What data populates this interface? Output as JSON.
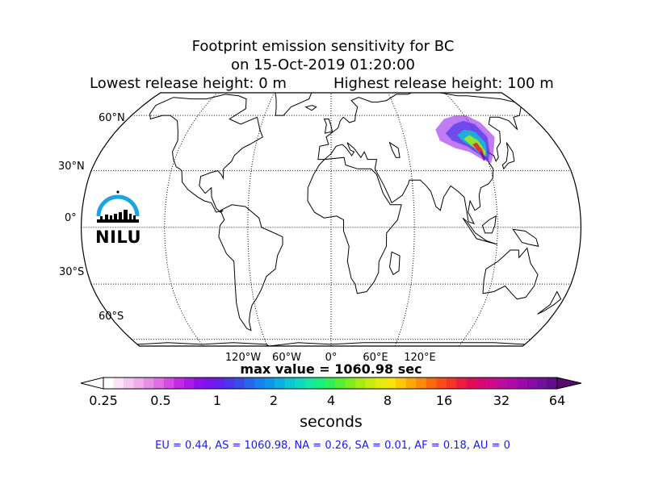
{
  "title": {
    "line1": "Footprint emission sensitivity for BC",
    "line2": "on 15-Oct-2019 01:20:00",
    "lowest": "Lowest release height: 0 m",
    "highest": "Highest release height: 100 m"
  },
  "map": {
    "projection": "Robinson",
    "lat_labels": [
      {
        "text": "60°N",
        "lat": 60
      },
      {
        "text": "30°N",
        "lat": 30
      },
      {
        "text": "0°",
        "lat": 0
      },
      {
        "text": "30°S",
        "lat": -30
      },
      {
        "text": "60°S",
        "lat": -60
      }
    ],
    "lon_labels": [
      {
        "text": "120°W",
        "lon": -120
      },
      {
        "text": "60°W",
        "lon": -60
      },
      {
        "text": "0°",
        "lon": 0
      },
      {
        "text": "60°E",
        "lon": 60
      },
      {
        "text": "120°E",
        "lon": 120
      }
    ],
    "plume_region": "East Asia (Eastern China / Mongolia / Siberia)"
  },
  "logo": {
    "text": "NILU",
    "color": "#1aa5e0"
  },
  "max_value": "max value = 1060.98 sec",
  "colorbar": {
    "label": "seconds",
    "ticks": [
      "0.25",
      "0.5",
      "1",
      "2",
      "4",
      "8",
      "16",
      "32",
      "64"
    ],
    "colors": [
      "#ffffff",
      "#fbe3f8",
      "#f5c8f2",
      "#eeacec",
      "#e68fe6",
      "#de6ee2",
      "#d24ee0",
      "#c02de0",
      "#a81ce6",
      "#9010ea",
      "#7a14ee",
      "#6420ee",
      "#4c34ea",
      "#3a4ce8",
      "#2a66ea",
      "#1c80ec",
      "#1098e8",
      "#0cb0e0",
      "#0cc6d2",
      "#10d8c0",
      "#14e6a4",
      "#1aef80",
      "#30f05a",
      "#58ee36",
      "#80ec20",
      "#a6ec14",
      "#c8ec10",
      "#e4ec0e",
      "#f6e40c",
      "#fcc80a",
      "#fcaa0a",
      "#fc8a0c",
      "#fc6a10",
      "#fa4c18",
      "#f43428",
      "#ec1c3e",
      "#e20c58",
      "#d80872",
      "#cc0a8a",
      "#be0c9a",
      "#ae0ca4",
      "#9a0ca6",
      "#860ca2",
      "#72109a",
      "#600e8c"
    ],
    "over_color": "#5a0a6e"
  },
  "stats": "EU = 0.44,  AS = 1060.98,  NA = 0.26,  SA = 0.01,  AF = 0.18,  AU = 0"
}
